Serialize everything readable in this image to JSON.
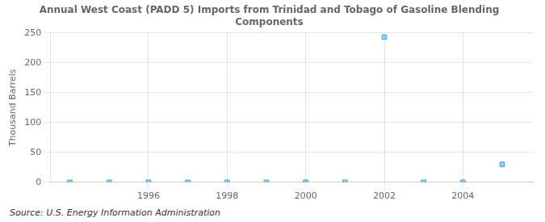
{
  "chart_data": {
    "type": "scatter",
    "title": "Annual West Coast (PADD 5) Imports from Trinidad and Tobago of Gasoline Blending\nComponents",
    "ylabel": "Thousand Barrels",
    "annotation": "Source: U.S. Energy Information Administration",
    "x": [
      1994,
      1995,
      1996,
      1997,
      1998,
      1999,
      2000,
      2001,
      2002,
      2003,
      2004,
      2005
    ],
    "values": [
      0,
      0,
      0,
      0,
      0,
      0,
      0,
      0,
      243,
      0,
      0,
      30
    ],
    "marker": "square",
    "xlim": [
      1993.5,
      2005.8
    ],
    "xticks": [
      1996,
      1998,
      2000,
      2002,
      2004
    ],
    "ylim": [
      0,
      250
    ],
    "yticks": [
      0,
      50,
      100,
      150,
      200,
      250
    ],
    "grid": true
  }
}
